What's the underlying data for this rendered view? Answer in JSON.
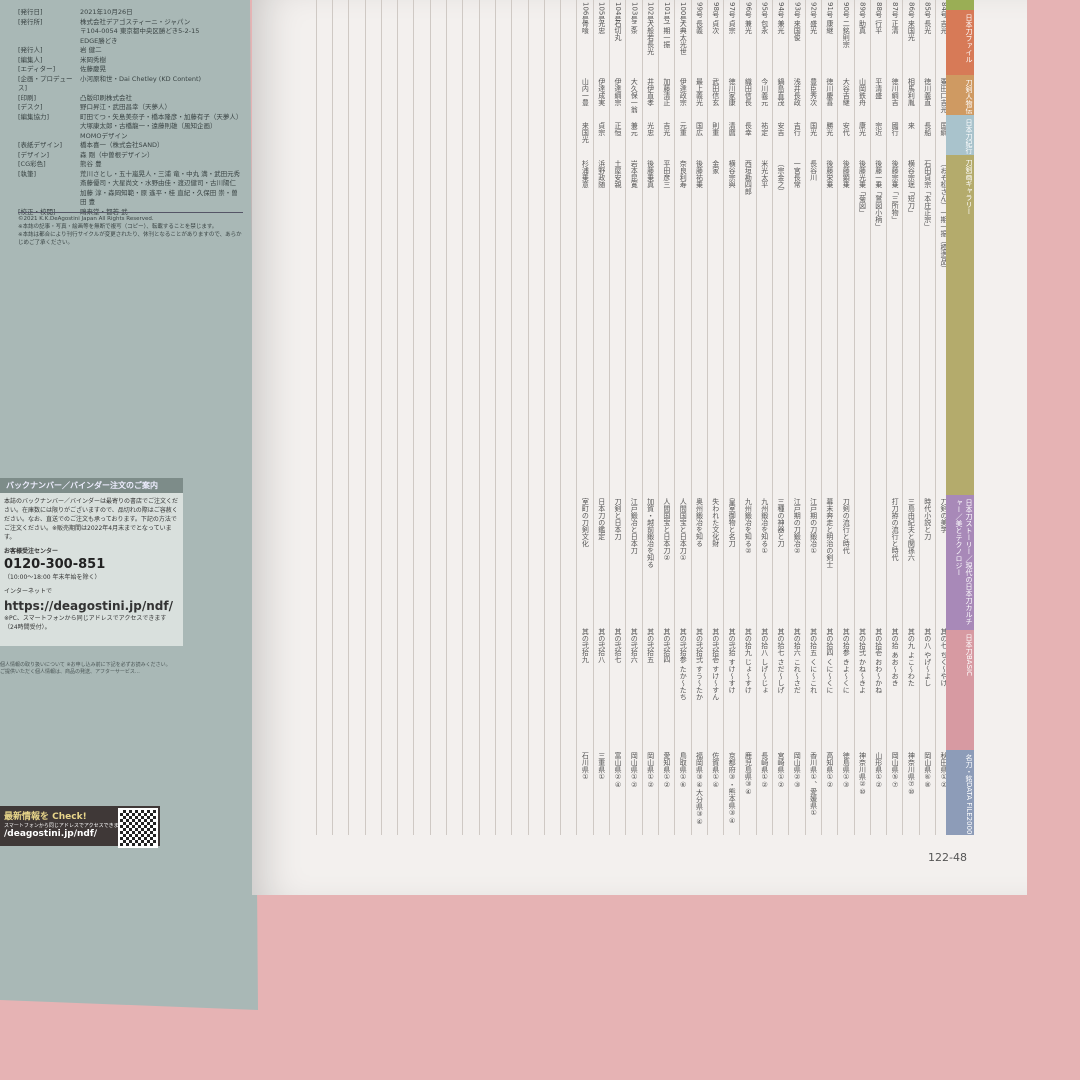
{
  "colophon": [
    {
      "k": "[発行日]",
      "v": "2021年10月26日"
    },
    {
      "k": "[発行所]",
      "v": "株式会社デアゴスティーニ・ジャパン"
    },
    {
      "k": "",
      "v": "〒104-0054 東京都中央区勝どき5-2-15"
    },
    {
      "k": "",
      "v": "EDGE勝どき"
    },
    {
      "k": "[発行人]",
      "v": "岩 健二"
    },
    {
      "k": "[編集人]",
      "v": "米岡秀樹"
    },
    {
      "k": "[エディター]",
      "v": "佐藤慶晃"
    },
    {
      "k": "[企画・プロデュース]",
      "v": "小河原和世・Dai Chetley (KD Content)"
    },
    {
      "k": "[印刷]",
      "v": "凸版印刷株式会社"
    },
    {
      "k": "[デスク]",
      "v": "野口昇江・武田昌幸（天夢人）"
    },
    {
      "k": "[編集協力]",
      "v": "町田てつ・矢島美奈子・橋本隆彦・加藤有子（天夢人）"
    },
    {
      "k": "",
      "v": "大塚康太郎・古橋龍一・遠藤則雄（風知企画）"
    },
    {
      "k": "",
      "v": "MOMOデザイン"
    },
    {
      "k": "[表紙デザイン]",
      "v": "橋本喜一（株式会社SAND）"
    },
    {
      "k": "[デザイン]",
      "v": "森 剛（中曽根デザイン）"
    },
    {
      "k": "[CG彩色]",
      "v": "熊谷 豊"
    },
    {
      "k": "[執筆]",
      "v": "荒川さとし・五十嵐晃人・三浦 竜・中丸 満・武田元秀"
    },
    {
      "k": "",
      "v": "斎藤優司・大星尚文・水野由佳・渡辺健司・古川陽仁"
    },
    {
      "k": "",
      "v": "加藤 淳・森岡知範・原 遙平・桂 直紀・久保田 崇・曽田 豊"
    },
    {
      "k": "[校正・校閲]",
      "v": "鴎来堂・都若 武"
    }
  ],
  "copyright": [
    "©2021 K.K.DeAgostini Japan All Rights Reserved.",
    "※本誌の記事・写真・絵画等を無断で複写（コピー）、転載することを禁じます。",
    "※本誌は都合により刊行サイクルが変更されたり、休刊となることがありますので、あらかじめご了承ください。"
  ],
  "order": {
    "title": "バックナンバー／バインダー注文のご案内",
    "body": "本誌のバックナンバー／バインダーは最寄りの書店でご注文ください。在庫数には限りがございますので、品切れの際はご容赦ください。なお、直送でのご注文も承っております。下記の方法でご注文ください。※販売期間は2022年4月末までとなっています。",
    "center": "お客様受注センター",
    "phone": "0120-300-851",
    "hours": "（10:00〜18:00 年末年始を除く）",
    "net": "インターネットで",
    "url": "https://deagostini.jp/ndf/",
    "note": "※PC、スマートフォンから同じアドレスでアクセスできます（24時間受付）。"
  },
  "privacy": "個人情報の取り扱いについて ※お申し込み前に下記を必ずお読みください。ご提供いただく個人情報は、商品の発送、アフターサービス…",
  "check": {
    "title": "最新情報を Check!",
    "sub": "スマートフォンから同じアドレスでアクセスできます。",
    "url": "/deagostini.jp/ndf/"
  },
  "bands": [
    {
      "label": "",
      "color": "#9aae55"
    },
    {
      "label": "日本刀ファイル",
      "color": "#d77a57"
    },
    {
      "label": "刀剣人物伝",
      "color": "#cf9a62"
    },
    {
      "label": "日本刀紀行",
      "color": "#a9c3cc"
    },
    {
      "label": "刀剣画ギャラリー",
      "color": "#b4ab6c"
    },
    {
      "label": "日本刀ストーリー／現代の日本刀カルチャー／美とテクノロジー",
      "color": "#a889b8"
    },
    {
      "label": "日本刀BASIC",
      "color": "#d79aa2"
    },
    {
      "label": "名刀・銘DATA FILE2000",
      "color": "#8d9cb8"
    }
  ],
  "columns": [
    {
      "no": "84号",
      "a": "吉光",
      "b": "粟田口吉光",
      "c": "国綱",
      "g": "（おそ松さん）一期一振（模造品）",
      "s": "刀剣の美学",
      "k": "其の七 ちく〜やけ",
      "d": "秋田県①②"
    },
    {
      "no": "85号",
      "a": "長光",
      "b": "徳川義直",
      "c": "長船",
      "g": "石田貞宗「本庄正宗」",
      "s": "時代小説と刀",
      "k": "其の八 やげ〜よし",
      "d": "岡山県⑥⑧"
    },
    {
      "no": "86号",
      "a": "来国光",
      "b": "相馬利胤",
      "c": "来",
      "g": "横谷宗珉「短刀」",
      "s": "三島由紀夫と関孫六",
      "k": "其の九 よこ〜わた",
      "d": "神奈川県⑦⑩"
    },
    {
      "no": "87号",
      "a": "正清",
      "b": "徳川綱吉",
      "c": "國行",
      "g": "後藤宗乗「三所物」",
      "s": "打刀拵の流行と時代",
      "k": "其の拾 あお〜おき",
      "d": "岡山県⑤⑦"
    },
    {
      "no": "88号",
      "a": "行平",
      "b": "平清盛",
      "c": "宗近",
      "g": "後藤一乗「鷲図小柄」",
      "s": "",
      "k": "其の拾壱 おわ〜かね",
      "d": "山形県①②"
    },
    {
      "no": "89号",
      "a": "助真",
      "b": "山岡鉄舟",
      "c": "康光",
      "g": "後藤光乗「菊図」",
      "s": "",
      "k": "其の拾弐 かね〜きよ",
      "d": "神奈川県②⑩"
    },
    {
      "no": "90号",
      "a": "二銘則宗",
      "b": "大谷吉継",
      "c": "安代",
      "g": "後藤顕乗",
      "s": "刀剣の流行と時代",
      "k": "其の拾参 きよ〜くに",
      "d": "徳島県①③"
    },
    {
      "no": "91号",
      "a": "康継",
      "b": "徳川慶喜",
      "c": "勝光",
      "g": "後藤栄乗",
      "s": "幕末奔走と明治の剣士",
      "k": "其の拾四 くに〜くに",
      "d": "高知県①②"
    },
    {
      "no": "92号",
      "a": "盛光",
      "b": "豊臣秀次",
      "c": "国光",
      "g": "長谷川",
      "s": "江戸期の刀鍛冶①",
      "k": "其の拾五 くに〜これ",
      "d": "香川県①、愛媛県①"
    },
    {
      "no": "93号",
      "a": "来国俊",
      "b": "浅井長政",
      "c": "吉行",
      "g": "一宮長常",
      "s": "江戸期の刀鍛冶②",
      "k": "其の拾六 これ〜さだ",
      "d": "岡山県②③"
    },
    {
      "no": "94号",
      "a": "兼光",
      "b": "鍋島直茂",
      "c": "安吉",
      "g": "（宗金之）",
      "s": "三種の神器と刀",
      "k": "其の拾七 さだ〜しげ",
      "d": "宮崎県①②"
    },
    {
      "no": "95号",
      "a": "包永",
      "b": "今川義元",
      "c": "祐定",
      "g": "米光太平",
      "s": "九州鍛冶を知る①",
      "k": "其の拾八 しげ〜じょ",
      "d": "長崎県①②"
    },
    {
      "no": "96号",
      "a": "兼光",
      "b": "織田信長",
      "c": "長幸",
      "g": "西垣勘四郎",
      "s": "九州鍛冶を知る②",
      "k": "其の拾九 じょ〜すけ",
      "d": "鹿児島県③④"
    },
    {
      "no": "97号",
      "a": "貞宗",
      "b": "徳川家康",
      "c": "清麿",
      "g": "横谷宗與",
      "s": "皇室御物と名刀",
      "k": "其の弐拾 すけ〜すけ",
      "d": "京都府③・熊本県③④"
    },
    {
      "no": "98号",
      "a": "貞次",
      "b": "武田信玄",
      "c": "則重",
      "g": "金家",
      "s": "失われた文化財",
      "k": "其の弐拾壱 すけ〜すん",
      "d": "佐賀県①④"
    },
    {
      "no": "99号",
      "a": "長義",
      "b": "最上義光",
      "c": "国広",
      "g": "後藤祐乗",
      "s": "奥州鍛冶を知る",
      "k": "其の弐拾弐 すう〜たか",
      "d": "福岡県③④大分県③④"
    },
    {
      "no": "100号",
      "a": "大典太光世",
      "b": "伊達政宗",
      "c": "元重",
      "g": "奈良利寿",
      "s": "人間国宝と日本刀①",
      "k": "其の弐拾参 たか〜たち",
      "d": "鳥取県①⑥"
    },
    {
      "no": "101号",
      "a": "一期一振",
      "b": "加藤清正",
      "c": "吉光",
      "g": "平田彦三",
      "s": "人間国宝と日本刀②",
      "k": "其の弐拾四",
      "d": "愛知県①②"
    },
    {
      "no": "102号",
      "a": "大般若長光",
      "b": "井伊直孝",
      "c": "光忠",
      "g": "後藤乗真",
      "s": "加賀・越前鍛冶を知る",
      "k": "其の弐拾五",
      "d": "岡山県①②"
    },
    {
      "no": "103号",
      "a": "三条",
      "b": "大久保一翁",
      "c": "兼元",
      "g": "岩本昆寛",
      "s": "江戸鍛冶と日本刀",
      "k": "其の弐拾六",
      "d": "岡山県①②"
    },
    {
      "no": "104号",
      "a": "石切丸",
      "b": "伊達綱宗",
      "c": "正恒",
      "g": "土屋安親",
      "s": "刀剣と日本刀",
      "k": "其の弐拾七",
      "d": "富山県②④"
    },
    {
      "no": "105号",
      "a": "光忠",
      "b": "伊達成実",
      "c": "貞宗",
      "g": "浜野政随",
      "s": "日本刀の鑑定",
      "k": "其の弐拾八",
      "d": "三重県①"
    },
    {
      "no": "106号",
      "a": "骨喰",
      "b": "山内一豊",
      "c": "来国光",
      "g": "杉浦乗意",
      "s": "室町の刀剣文化",
      "k": "其の弐拾九",
      "d": "石川県①"
    }
  ],
  "page_number": "122-48"
}
